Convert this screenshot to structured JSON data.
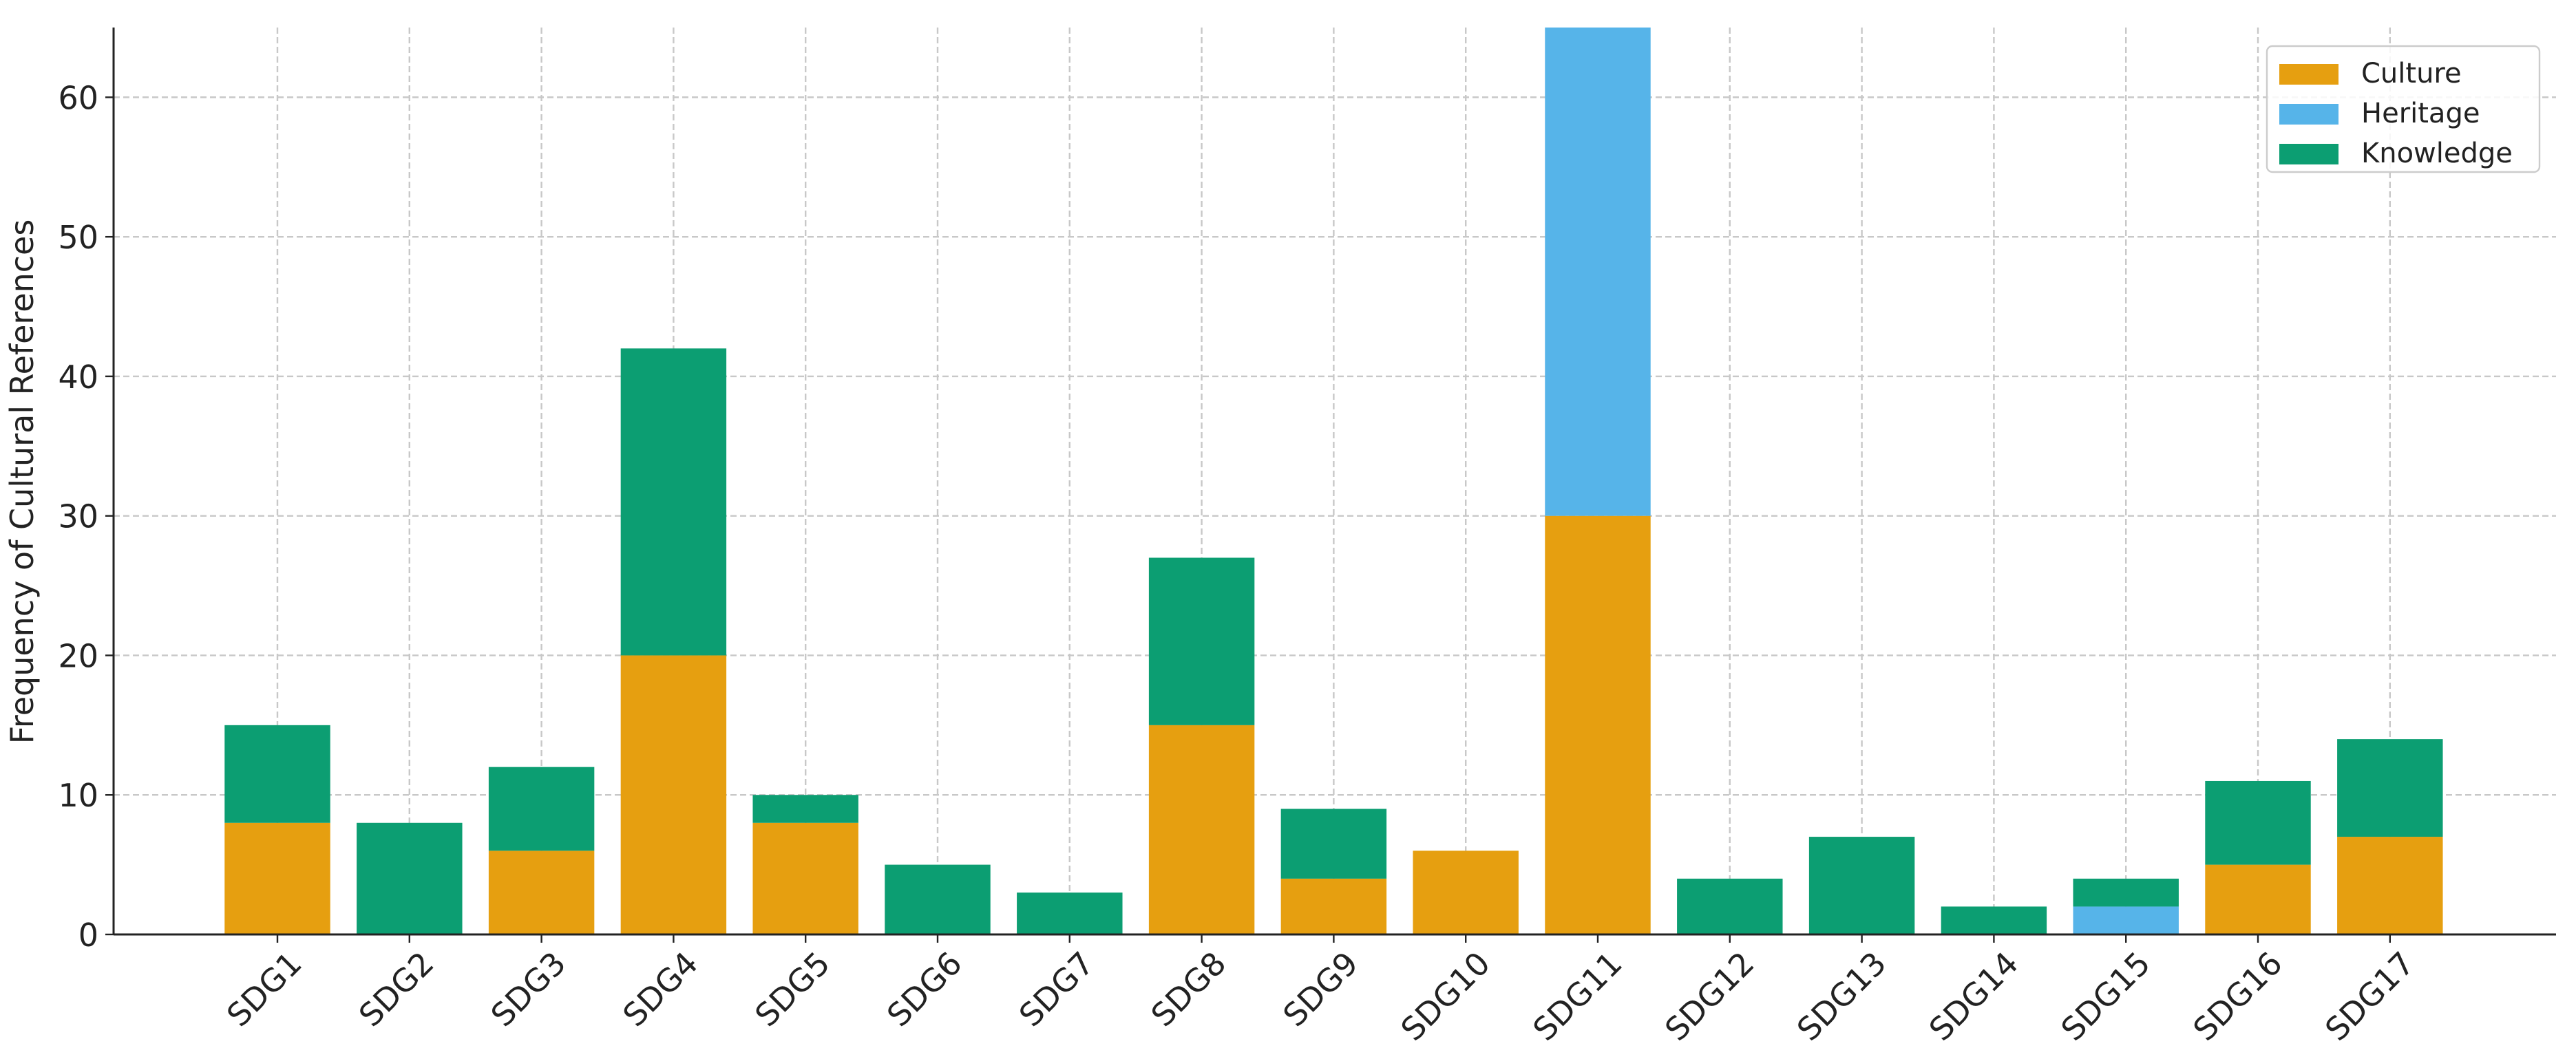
{
  "chart_data": {
    "type": "stacked_bar",
    "y_label": "Frequency of Cultural References",
    "categories": [
      "SDG1",
      "SDG2",
      "SDG3",
      "SDG4",
      "SDG5",
      "SDG6",
      "SDG7",
      "SDG8",
      "SDG9",
      "SDG10",
      "SDG11",
      "SDG12",
      "SDG13",
      "SDG14",
      "SDG15",
      "SDG16",
      "SDG17"
    ],
    "series": [
      {
        "name": "Culture",
        "color": "#e69f10",
        "values": [
          8,
          0,
          6,
          20,
          8,
          0,
          0,
          15,
          4,
          6,
          30,
          0,
          0,
          0,
          0,
          5,
          7
        ]
      },
      {
        "name": "Heritage",
        "color": "#56b4e9",
        "values": [
          0,
          0,
          0,
          0,
          0,
          0,
          0,
          0,
          0,
          0,
          35,
          0,
          0,
          0,
          2,
          0,
          0
        ]
      },
      {
        "name": "Knowledge",
        "color": "#0c9e72",
        "values": [
          7,
          8,
          6,
          22,
          2,
          5,
          3,
          12,
          5,
          0,
          0,
          4,
          7,
          2,
          2,
          6,
          7
        ]
      }
    ],
    "ylim": [
      0,
      65
    ],
    "yticks": [
      0,
      10,
      20,
      30,
      40,
      50,
      60
    ],
    "grid": true,
    "legend": "upper right"
  }
}
